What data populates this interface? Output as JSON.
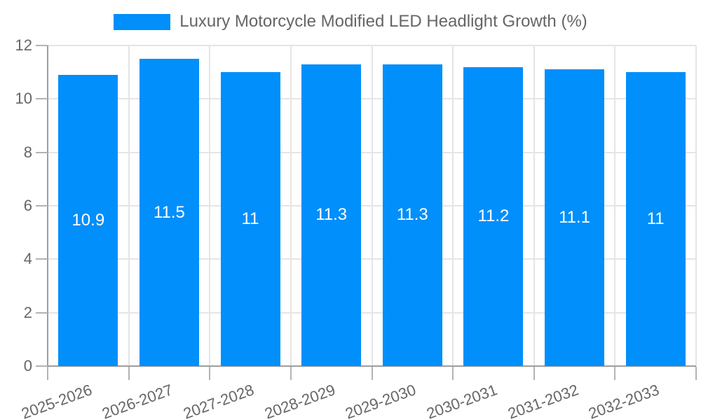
{
  "chart_data": {
    "type": "bar",
    "title": "Luxury Motorcycle Modified LED Headlight Growth (%)",
    "categories": [
      "2025-2026",
      "2026-2027",
      "2027-2028",
      "2028-2029",
      "2029-2030",
      "2030-2031",
      "2031-2032",
      "2032-2033"
    ],
    "values": [
      10.9,
      11.5,
      11,
      11.3,
      11.3,
      11.2,
      11.1,
      11
    ],
    "value_labels": [
      "10.9",
      "11.5",
      "11",
      "11.3",
      "11.3",
      "11.2",
      "11.1",
      "11"
    ],
    "y_ticks": [
      0,
      2,
      4,
      6,
      8,
      10,
      12
    ],
    "ylim": [
      0,
      12
    ],
    "xlabel": "",
    "ylabel": "",
    "grid": true,
    "legend_position": "top",
    "bar_color": "#008FFB",
    "value_label_color": "#ffffff"
  },
  "colors": {
    "grid_line": "#e5e5e5",
    "axis_line": "#9e9e9e",
    "tick_mark": "#b3b3b3",
    "axis_label": "#666666",
    "legend_text": "#666666",
    "background": "#ffffff"
  }
}
